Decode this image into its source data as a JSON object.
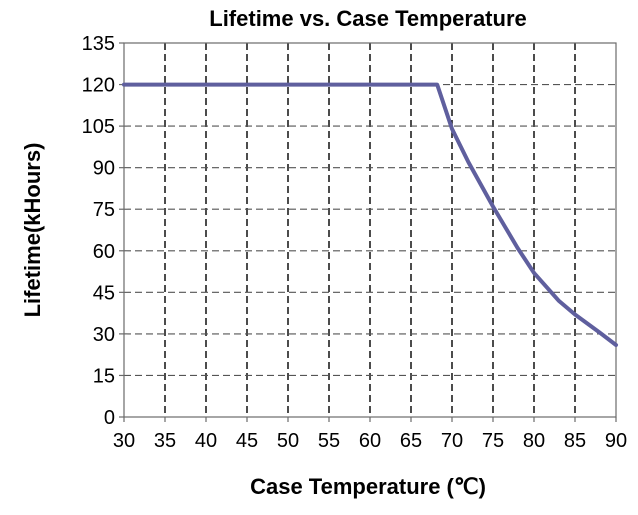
{
  "chart_data": {
    "type": "line",
    "title": "Lifetime vs. Case Temperature",
    "xlabel": "Case Temperature (℃)",
    "ylabel": "Lifetime(kHours)",
    "xlim": [
      30,
      90
    ],
    "ylim": [
      0,
      135
    ],
    "xticks": [
      30,
      35,
      40,
      45,
      50,
      55,
      60,
      65,
      70,
      75,
      80,
      85,
      90
    ],
    "yticks": [
      0,
      15,
      30,
      45,
      60,
      75,
      90,
      105,
      120,
      135
    ],
    "grid": true,
    "legend": "none",
    "series": [
      {
        "color": "#5f5f9e",
        "x": [
          30,
          35,
          40,
          45,
          50,
          55,
          60,
          65,
          68.2,
          70,
          72,
          75,
          78,
          80,
          83,
          85,
          88,
          90
        ],
        "y": [
          120,
          120,
          120,
          120,
          120,
          120,
          120,
          120,
          120,
          104,
          92,
          76,
          61,
          52,
          42,
          37,
          30.5,
          26
        ]
      }
    ]
  }
}
